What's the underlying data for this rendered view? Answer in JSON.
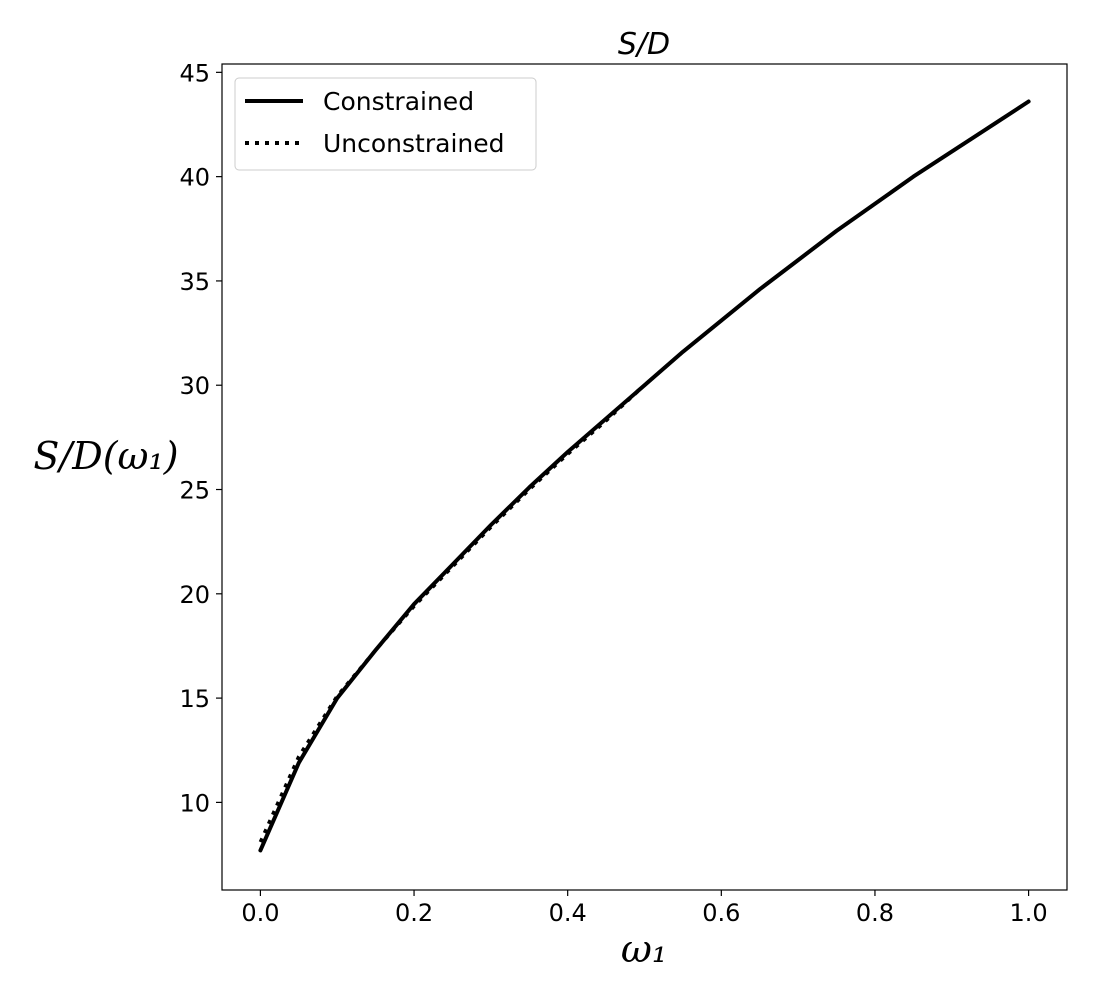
{
  "chart_data": {
    "type": "line",
    "title": "S/D",
    "xlabel": "ω₁",
    "ylabel": "S/D(ω₁)",
    "xlim": [
      -0.05,
      1.05
    ],
    "ylim": [
      5.8,
      45.4
    ],
    "x_ticks": [
      "0.0",
      "0.2",
      "0.4",
      "0.6",
      "0.8",
      "1.0"
    ],
    "y_ticks": [
      "10",
      "15",
      "20",
      "25",
      "30",
      "35",
      "40",
      "45"
    ],
    "grid": false,
    "legend": {
      "placement": "top-left"
    },
    "x": [
      0.0,
      0.05,
      0.1,
      0.15,
      0.2,
      0.25,
      0.3,
      0.35,
      0.4,
      0.45,
      0.5,
      0.55,
      0.6,
      0.65,
      0.7,
      0.75,
      0.8,
      0.85,
      0.9,
      0.95,
      1.0
    ],
    "series": [
      {
        "name": "Constrained",
        "style": "solid",
        "color": "#000000",
        "values": [
          7.7,
          11.9,
          15.0,
          17.3,
          19.5,
          21.4,
          23.3,
          25.1,
          26.8,
          28.4,
          30.0,
          31.6,
          33.1,
          34.6,
          36.0,
          37.4,
          38.7,
          40.0,
          41.2,
          42.4,
          43.6
        ]
      },
      {
        "name": "Unconstrained",
        "style": "dotted",
        "color": "#000000",
        "values": [
          8.1,
          12.2,
          15.1,
          17.3,
          19.4,
          21.3,
          23.2,
          25.0,
          26.7,
          28.3,
          30.0,
          31.6,
          33.1,
          34.6,
          36.0,
          37.4,
          38.7,
          40.0,
          41.2,
          42.4,
          43.6
        ]
      }
    ]
  }
}
